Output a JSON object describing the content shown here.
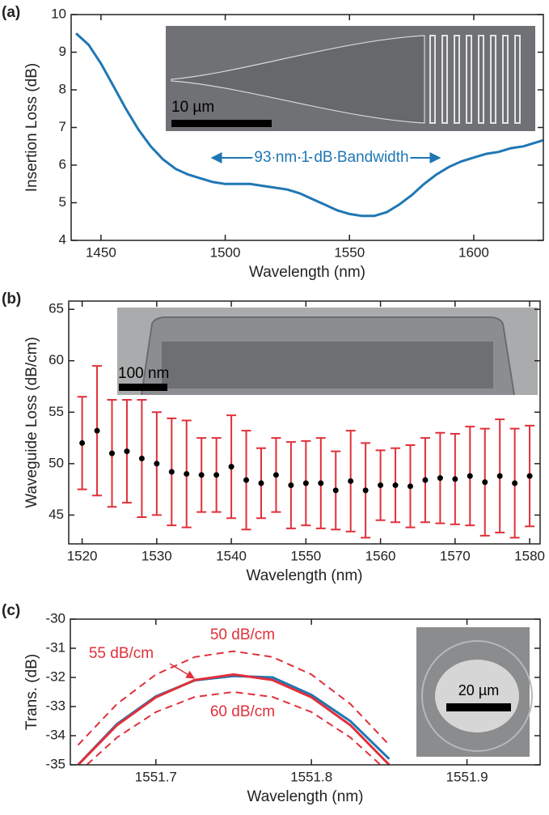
{
  "chart_data": [
    {
      "type": "line",
      "label": "(a)",
      "xlabel": "Wavelength (nm)",
      "ylabel": "Insertion Loss (dB)",
      "annotation": "93 nm 1 dB Bandwidth",
      "inset_scale": "10 µm",
      "color": "#1f77b4",
      "x": [
        1440,
        1445,
        1450,
        1455,
        1460,
        1465,
        1470,
        1475,
        1480,
        1485,
        1490,
        1495,
        1500,
        1505,
        1510,
        1515,
        1520,
        1525,
        1530,
        1535,
        1540,
        1545,
        1550,
        1555,
        1560,
        1565,
        1570,
        1575,
        1580,
        1585,
        1590,
        1595,
        1600,
        1605,
        1610,
        1615,
        1620,
        1625,
        1630
      ],
      "values": [
        9.5,
        9.2,
        8.7,
        8.1,
        7.5,
        6.95,
        6.5,
        6.15,
        5.9,
        5.75,
        5.65,
        5.55,
        5.5,
        5.5,
        5.5,
        5.45,
        5.4,
        5.35,
        5.25,
        5.1,
        4.95,
        4.8,
        4.7,
        4.65,
        4.65,
        4.75,
        4.95,
        5.2,
        5.5,
        5.75,
        5.95,
        6.1,
        6.2,
        6.3,
        6.35,
        6.45,
        6.5,
        6.6,
        6.7
      ],
      "xlim": [
        1438,
        1628
      ],
      "ylim": [
        4,
        10
      ],
      "xticks": [
        1450,
        1500,
        1550,
        1600
      ],
      "yticks": [
        4,
        5,
        6,
        7,
        8,
        9,
        10
      ]
    },
    {
      "type": "errorbar",
      "label": "(b)",
      "xlabel": "Wavelength (nm)",
      "ylabel": "Waveguide Loss (dB/cm)",
      "inset_scale": "100 nm",
      "color": "#e0303a",
      "marker_color": "#000000",
      "x": [
        1520,
        1522,
        1524,
        1526,
        1528,
        1530,
        1532,
        1534,
        1536,
        1538,
        1540,
        1542,
        1544,
        1546,
        1548,
        1550,
        1552,
        1554,
        1556,
        1558,
        1560,
        1562,
        1564,
        1566,
        1568,
        1570,
        1572,
        1574,
        1576,
        1578,
        1580
      ],
      "values": [
        52.0,
        53.2,
        51.0,
        51.2,
        50.5,
        50.0,
        49.2,
        49.0,
        48.9,
        48.9,
        49.7,
        48.4,
        48.1,
        48.9,
        47.9,
        48.1,
        48.1,
        47.4,
        48.3,
        47.4,
        47.9,
        47.9,
        47.8,
        48.4,
        48.6,
        48.5,
        48.8,
        48.2,
        48.8,
        48.1,
        48.8
      ],
      "errors": [
        4.5,
        6.3,
        5.2,
        5.0,
        5.7,
        5.0,
        5.2,
        5.2,
        3.6,
        3.6,
        5.0,
        4.8,
        3.4,
        3.6,
        4.2,
        4.1,
        4.4,
        3.8,
        4.9,
        4.6,
        3.4,
        3.6,
        4.0,
        4.1,
        4.4,
        4.4,
        4.8,
        5.2,
        5.5,
        5.3,
        4.9
      ],
      "xlim": [
        1518.2,
        1581.4
      ],
      "ylim": [
        42.2,
        65.8
      ],
      "xticks": [
        1520,
        1530,
        1540,
        1550,
        1560,
        1570,
        1580
      ],
      "yticks": [
        45,
        50,
        55,
        60,
        65
      ]
    },
    {
      "type": "line",
      "label": "(c)",
      "xlabel": "Wavelength (nm)",
      "ylabel": "Trans. (dB)",
      "inset_scale": "20 µm",
      "x": [
        1551.65,
        1551.675,
        1551.7,
        1551.725,
        1551.75,
        1551.775,
        1551.8,
        1551.825,
        1551.85
      ],
      "series": [
        {
          "name": "50 dB/cm",
          "color": "#e0303a",
          "style": "dashed",
          "values": [
            -34.32,
            -32.91,
            -31.9,
            -31.3,
            -31.1,
            -31.3,
            -31.9,
            -32.91,
            -34.32
          ]
        },
        {
          "name": "60 dB/cm",
          "color": "#e0303a",
          "style": "dashed",
          "values": [
            -35.27,
            -34.06,
            -33.19,
            -32.67,
            -32.5,
            -32.67,
            -33.19,
            -34.06,
            -35.27
          ]
        },
        {
          "color": "#1f77b4",
          "style": "solid",
          "values": [
            -35.0,
            -33.6,
            -32.65,
            -32.1,
            -31.95,
            -32.0,
            -32.6,
            -33.5,
            -34.8
          ]
        },
        {
          "name": "55 dB/cm",
          "color": "#e0303a",
          "style": "solid",
          "values": [
            -35.0,
            -33.64,
            -32.68,
            -32.09,
            -31.9,
            -32.09,
            -32.68,
            -33.64,
            -35.0
          ]
        }
      ],
      "xlim": [
        1551.645,
        1551.947
      ],
      "ylim": [
        -35,
        -30
      ],
      "xticks": [
        1551.7,
        1551.8,
        1551.9
      ],
      "yticks": [
        -35,
        -34,
        -33,
        -32,
        -31,
        -30
      ]
    }
  ]
}
